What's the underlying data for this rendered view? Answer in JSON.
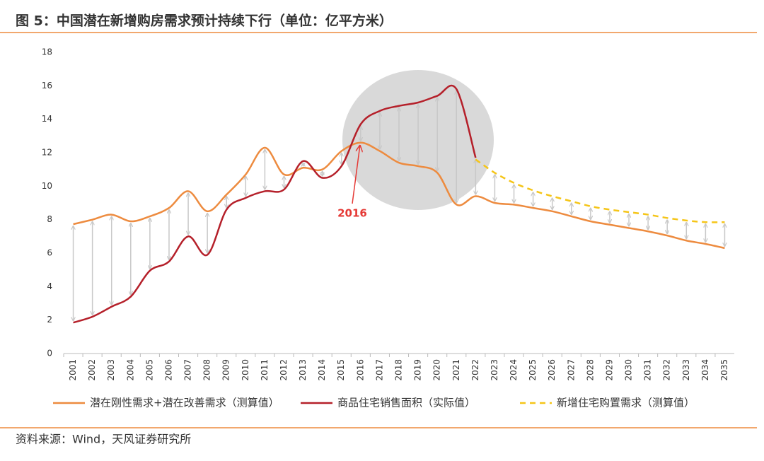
{
  "chart_data": {
    "type": "line",
    "title": "图 5：中国潜在新增购房需求预计持续下行（单位：亿平方米）",
    "source": "资料来源：Wind，天风证券研究所",
    "annotation": "2016",
    "categories": [
      "2001",
      "2002",
      "2003",
      "2004",
      "2005",
      "2006",
      "2007",
      "2008",
      "2009",
      "2010",
      "2011",
      "2012",
      "2013",
      "2014",
      "2015",
      "2016",
      "2017",
      "2018",
      "2019",
      "2020",
      "2021",
      "2022",
      "2023",
      "2024",
      "2025",
      "2026",
      "2027",
      "2028",
      "2029",
      "2030",
      "2031",
      "2032",
      "2033",
      "2034",
      "2035"
    ],
    "series": [
      {
        "name": "潜在刚性需求+潜在改善需求（测算值）",
        "color": "#ed8b3f",
        "style": "solid",
        "values": [
          7.73,
          8.0,
          8.3,
          7.9,
          8.2,
          8.7,
          9.7,
          8.5,
          9.5,
          10.7,
          12.3,
          10.7,
          11.1,
          11.0,
          12.1,
          12.6,
          12.1,
          11.4,
          11.2,
          10.8,
          8.9,
          9.4,
          9.0,
          8.9,
          8.7,
          8.5,
          8.2,
          7.9,
          7.7,
          7.5,
          7.3,
          7.05,
          6.75,
          6.55,
          6.3
        ]
      },
      {
        "name": "商品住宅销售面积（实际值）",
        "color": "#b5202a",
        "style": "solid",
        "values": [
          1.85,
          2.2,
          2.8,
          3.4,
          4.95,
          5.5,
          7.0,
          5.9,
          8.6,
          9.3,
          9.7,
          9.8,
          11.5,
          10.5,
          11.2,
          13.7,
          14.5,
          14.8,
          15.0,
          15.4,
          15.8,
          11.7,
          null,
          null,
          null,
          null,
          null,
          null,
          null,
          null,
          null,
          null,
          null,
          null,
          null
        ]
      },
      {
        "name": "新增住宅购置需求（测算值）",
        "color": "#f5c518",
        "style": "dashed",
        "values": [
          null,
          null,
          null,
          null,
          null,
          null,
          null,
          null,
          null,
          null,
          null,
          null,
          null,
          null,
          null,
          null,
          null,
          null,
          null,
          null,
          null,
          11.6,
          10.8,
          10.2,
          9.75,
          9.4,
          9.1,
          8.8,
          8.6,
          8.45,
          8.3,
          8.1,
          7.95,
          7.85,
          7.85
        ]
      }
    ],
    "ylim": [
      0,
      18
    ],
    "yticks": [
      0,
      2,
      4,
      6,
      8,
      10,
      12,
      14,
      16,
      18
    ],
    "legend": "bottom"
  }
}
